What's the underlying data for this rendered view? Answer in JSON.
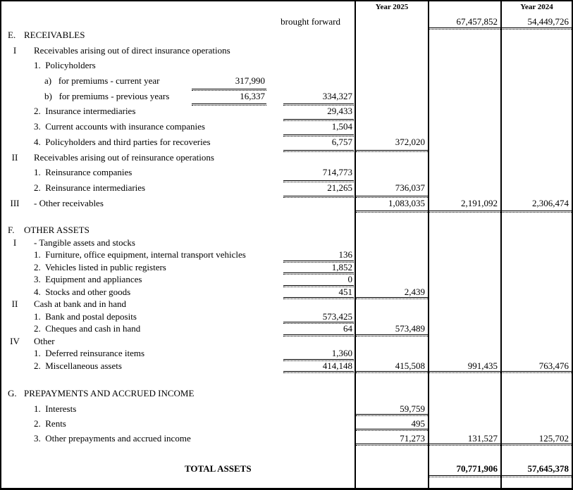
{
  "header": {
    "col_2025": "Year 2025",
    "col_2024": "Year 2024"
  },
  "colors": {
    "text": "#000000",
    "background": "#ffffff",
    "border": "#000000"
  },
  "rows": [
    {
      "name": "brought-forward",
      "sec": "carry",
      "level": "carry",
      "label": "brought forward",
      "c2": "67,457,852",
      "c3": "54,449,726"
    },
    {
      "name": "receivables-section",
      "sec": "e",
      "level": "section",
      "prefix": "E.",
      "label": "RECEIVABLES"
    },
    {
      "name": "direct-insurance-receivables-group",
      "sec": "e",
      "level": "roman",
      "prefix": "I",
      "label": "Receivables arising out of direct insurance operations"
    },
    {
      "name": "policyholders-item",
      "sec": "e",
      "level": "item",
      "label": "1.  Policyholders"
    },
    {
      "name": "premiums-current-year",
      "sec": "e",
      "level": "subitem",
      "label": "a)   for premiums - current year",
      "a": "317,990"
    },
    {
      "name": "premiums-previous-years",
      "sec": "e",
      "level": "subitem",
      "label": "b)   for premiums - previous years",
      "a": "16,337",
      "b": "334,327"
    },
    {
      "name": "insurance-intermediaries",
      "sec": "e",
      "level": "item",
      "label": "2.  Insurance intermediaries",
      "b": "29,433"
    },
    {
      "name": "current-accounts-insurance-companies",
      "sec": "e",
      "level": "item",
      "label": "3.  Current accounts with insurance companies",
      "b": "1,504"
    },
    {
      "name": "policyholders-third-parties-recoveries",
      "sec": "e",
      "level": "item",
      "label": "4.  Policyholders and third parties for recoveries",
      "b": "6,757",
      "c1": "372,020"
    },
    {
      "name": "reinsurance-receivables-group",
      "sec": "e",
      "level": "roman",
      "prefix": "II",
      "label": "Receivables arising out of reinsurance operations"
    },
    {
      "name": "reinsurance-companies",
      "sec": "e",
      "level": "item",
      "label": "1.  Reinsurance companies",
      "b": "714,773"
    },
    {
      "name": "reinsurance-intermediaries",
      "sec": "e",
      "level": "item",
      "label": "2.  Reinsurance intermediaries",
      "b": "21,265",
      "c1": "736,037"
    },
    {
      "name": "other-receivables",
      "sec": "e",
      "level": "roman",
      "prefix": "III",
      "label": "- Other receivables",
      "c1": "1,083,035",
      "c2": "2,191,092",
      "c3": "2,306,474"
    },
    {
      "name": "other-assets-section",
      "sec": "f",
      "gap": true,
      "level": "section",
      "prefix": "F.",
      "label": "OTHER ASSETS"
    },
    {
      "name": "tangible-assets-group",
      "sec": "f",
      "level": "roman",
      "prefix": "I",
      "label": "- Tangible assets and stocks"
    },
    {
      "name": "furniture-office-equipment",
      "sec": "f",
      "level": "item",
      "label": "1.  Furniture, office equipment, internal transport vehicles",
      "b": "136"
    },
    {
      "name": "vehicles-public-registers",
      "sec": "f",
      "level": "item",
      "label": "2.  Vehicles listed in public registers",
      "b": "1,852"
    },
    {
      "name": "equipment-appliances",
      "sec": "f",
      "level": "item",
      "label": "3.  Equipment and appliances",
      "b": "0"
    },
    {
      "name": "stocks-other-goods",
      "sec": "f",
      "level": "item",
      "label": "4.  Stocks and other goods",
      "b": "451",
      "c1": "2,439"
    },
    {
      "name": "cash-at-bank-group",
      "sec": "f",
      "level": "roman",
      "prefix": "II",
      "label": "Cash at bank and in hand"
    },
    {
      "name": "bank-postal-deposits",
      "sec": "f",
      "level": "item",
      "label": "1.  Bank and postal deposits",
      "b": "573,425"
    },
    {
      "name": "cheques-cash-in-hand",
      "sec": "f",
      "level": "item",
      "label": "2.  Cheques and cash in hand",
      "b": "64",
      "c1": "573,489"
    },
    {
      "name": "other-group",
      "sec": "f",
      "level": "roman",
      "prefix": "IV",
      "label": "Other"
    },
    {
      "name": "deferred-reinsurance-items",
      "sec": "f",
      "level": "item",
      "label": "1.  Deferred reinsurance items",
      "b": "1,360"
    },
    {
      "name": "miscellaneous-assets",
      "sec": "f",
      "level": "item",
      "label": "2.  Miscellaneous assets",
      "b": "414,148",
      "c1": "415,508",
      "c2": "991,435",
      "c3": "763,476"
    },
    {
      "name": "prepayments-section",
      "sec": "g",
      "gap": true,
      "level": "section",
      "prefix": "G.",
      "label": "PREPAYMENTS AND ACCRUED INCOME"
    },
    {
      "name": "interests",
      "sec": "g",
      "level": "item",
      "label": "1.  Interests",
      "c1": "59,759"
    },
    {
      "name": "rents",
      "sec": "g",
      "level": "item",
      "label": "2.  Rents",
      "c1": "495"
    },
    {
      "name": "other-prepayments-accrued-income",
      "sec": "g",
      "level": "item",
      "label": "3.  Other prepayments and accrued income",
      "c1": "71,273",
      "c2": "131,527",
      "c3": "125,702"
    },
    {
      "name": "total-assets",
      "sec": "total",
      "gap": true,
      "level": "total",
      "label": "TOTAL ASSETS",
      "c2": "70,771,906",
      "c3": "57,645,378"
    }
  ]
}
